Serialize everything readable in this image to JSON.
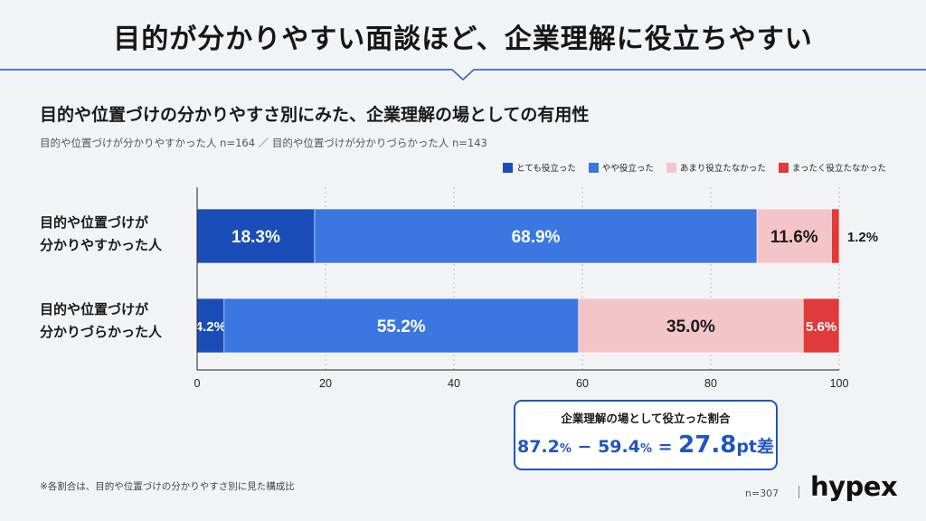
{
  "headline": "目的が分かりやすい面談ほど、企業理解に役立ちやすい",
  "subtitle": "目的や位置づけの分かりやすさ別にみた、企業理解の場としての有用性",
  "sample_note": "目的や位置づけが分かりやすかった人 n=164 ／ 目的や位置づけが分かりづらかった人 n=143",
  "chart_data": {
    "type": "bar",
    "orientation": "horizontal",
    "stacked": true,
    "title": "",
    "categories": [
      "目的や位置づけが\n分かりやすかった人",
      "目的や位置づけが\n分かりづらかった人"
    ],
    "series": [
      {
        "name": "とても役立った",
        "values": [
          18.3,
          4.2
        ],
        "color": "#1a4db7"
      },
      {
        "name": "やや役立った",
        "values": [
          68.9,
          55.2
        ],
        "color": "#3b77e0"
      },
      {
        "name": "あまり役立たなかった",
        "values": [
          11.6,
          35.0
        ],
        "color": "#f4c5c8"
      },
      {
        "name": "まったく役立たなかった",
        "values": [
          1.2,
          5.6
        ],
        "color": "#e13a3a"
      }
    ],
    "xlim": [
      0,
      100
    ],
    "xticks": [
      "0",
      "20",
      "40",
      "60",
      "80",
      "100"
    ],
    "grid": true,
    "legend_position": "top-right"
  },
  "summary": {
    "title": "企業理解の場として役立った割合",
    "value_a": "87.2",
    "value_b": "59.4",
    "diff": "27.8",
    "diff_unit": "pt差",
    "pct_sign": "%",
    "minus": "−",
    "equals": "="
  },
  "footnote": "※各割合は、目的や位置づけの分かりやすさ別に見た構成比",
  "n_total": "n=307",
  "brand": "hypex",
  "colors": {
    "accent": "#1f55c4",
    "background": "#f2f3f5"
  }
}
